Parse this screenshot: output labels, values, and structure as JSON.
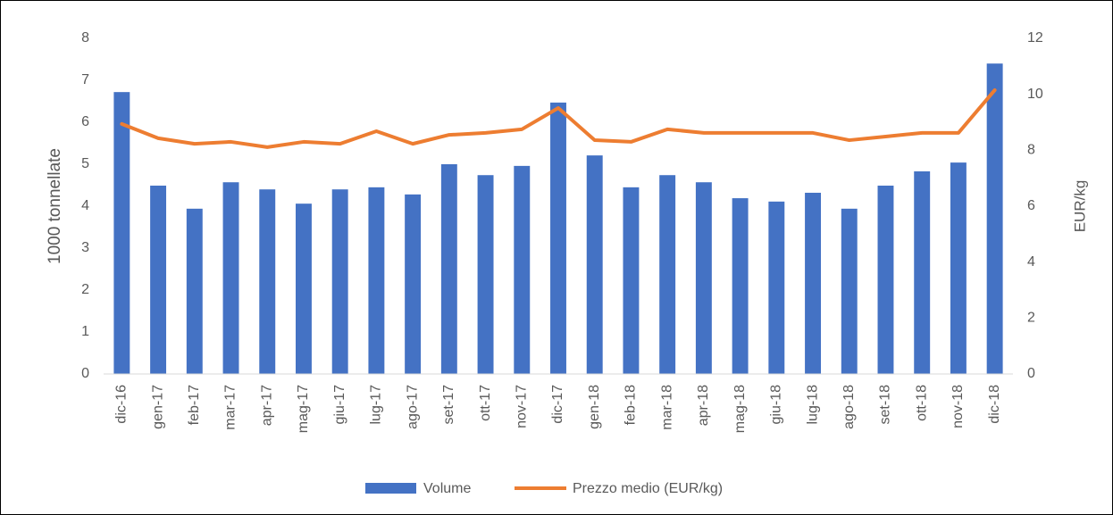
{
  "chart_data": {
    "type": "bar_line",
    "categories": [
      "dic-16",
      "gen-17",
      "feb-17",
      "mar-17",
      "apr-17",
      "mag-17",
      "giu-17",
      "lug-17",
      "ago-17",
      "set-17",
      "ott-17",
      "nov-17",
      "dic-17",
      "gen-18",
      "feb-18",
      "mar-18",
      "apr-18",
      "mag-18",
      "giu-18",
      "lug-18",
      "ago-18",
      "set-18",
      "ott-18",
      "nov-18",
      "dic-18"
    ],
    "series": [
      {
        "name": "Volume",
        "type": "bar",
        "color": "#4472c4",
        "axis": "y",
        "values": [
          6.72,
          4.49,
          3.94,
          4.57,
          4.4,
          4.06,
          4.4,
          4.45,
          4.28,
          5.0,
          4.74,
          4.96,
          6.47,
          5.21,
          4.45,
          4.74,
          4.57,
          4.19,
          4.11,
          4.32,
          3.94,
          4.49,
          4.83,
          5.04,
          7.4
        ]
      },
      {
        "name": "Prezzo medio (EUR/kg)",
        "type": "line",
        "color": "#ed7d31",
        "axis": "y2",
        "values": [
          8.94,
          8.43,
          8.23,
          8.3,
          8.11,
          8.3,
          8.23,
          8.68,
          8.23,
          8.55,
          8.62,
          8.75,
          9.51,
          8.36,
          8.3,
          8.75,
          8.62,
          8.62,
          8.62,
          8.62,
          8.36,
          8.49,
          8.62,
          8.62,
          10.15
        ]
      }
    ],
    "ylabel": "1000 tonnellate",
    "y2label": "EUR/kg",
    "ylim": [
      0,
      8
    ],
    "yticks": [
      0,
      1,
      2,
      3,
      4,
      5,
      6,
      7,
      8
    ],
    "y2lim": [
      0,
      12
    ],
    "y2ticks": [
      0,
      2,
      4,
      6,
      8,
      10,
      12
    ],
    "grid": false,
    "legend": "bottom"
  }
}
